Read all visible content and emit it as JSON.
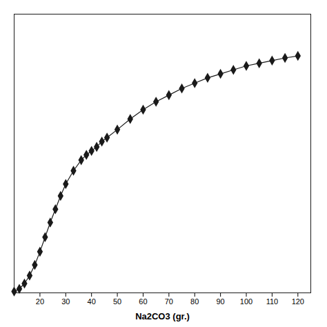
{
  "chart_data": {
    "type": "line",
    "xlabel": "Na2CO3 (gr.)",
    "x": [
      10,
      12,
      14,
      16,
      18,
      20,
      22,
      24,
      26,
      28,
      30,
      33,
      36,
      38,
      40,
      42,
      44,
      46,
      50,
      55,
      60,
      65,
      70,
      75,
      80,
      85,
      90,
      95,
      100,
      105,
      110,
      115,
      120
    ],
    "values": [
      0.02,
      0.06,
      0.14,
      0.26,
      0.42,
      0.62,
      0.84,
      1.06,
      1.26,
      1.46,
      1.64,
      1.84,
      2.0,
      2.08,
      2.14,
      2.2,
      2.28,
      2.34,
      2.46,
      2.62,
      2.76,
      2.88,
      2.98,
      3.08,
      3.16,
      3.24,
      3.3,
      3.36,
      3.42,
      3.46,
      3.5,
      3.54,
      3.57
    ],
    "color": "#1a1a1a",
    "marker": "diamond",
    "line_style": "solid",
    "xlim": [
      10,
      125
    ],
    "ylim": [
      0,
      4.2
    ],
    "xticks": [
      20,
      30,
      40,
      50,
      60,
      70,
      80,
      90,
      100,
      110,
      120
    ],
    "tick_labels": "x",
    "grid": false
  }
}
